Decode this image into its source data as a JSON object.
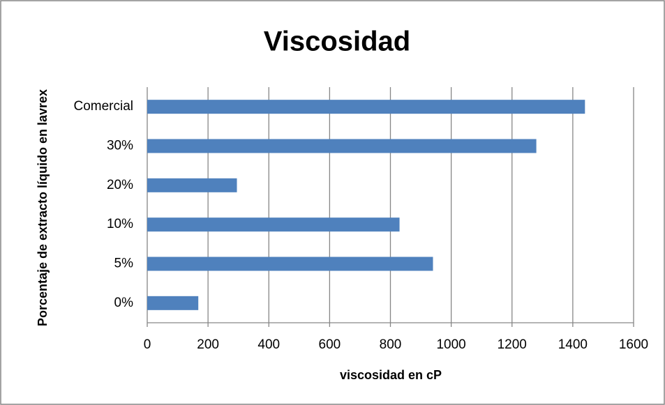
{
  "chart_data": {
    "type": "barh",
    "title": "Viscosidad",
    "x_label": "viscosidad en cP",
    "y_label": "Porcentaje de extracto líquido en lavrex",
    "categories": [
      "0%",
      "5%",
      "10%",
      "20%",
      "30%",
      "Comercial"
    ],
    "values": [
      168,
      940,
      830,
      295,
      1280,
      1440
    ],
    "color": "#4f81bd",
    "xlim": [
      0,
      1600
    ],
    "xticks": [
      0,
      200,
      400,
      600,
      800,
      1000,
      1200,
      1400,
      1600
    ],
    "grid": true
  }
}
